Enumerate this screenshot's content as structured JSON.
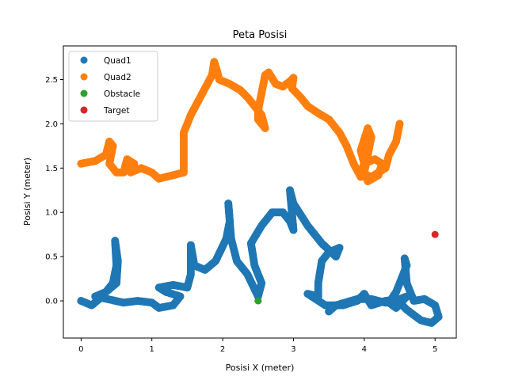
{
  "chart_data": {
    "type": "scatter",
    "title": "Peta Posisi",
    "xlabel": "Posisi X (meter)",
    "ylabel": "Posisi Y (meter)",
    "xlim": [
      -0.25,
      5.3
    ],
    "ylim": [
      -0.42,
      2.88
    ],
    "xticks": [
      0,
      1,
      2,
      3,
      4,
      5
    ],
    "yticks": [
      0.0,
      0.5,
      1.0,
      1.5,
      2.0,
      2.5
    ],
    "ytick_labels": [
      "0.0",
      "0.5",
      "1.0",
      "1.5",
      "2.0",
      "2.5"
    ],
    "grid": false,
    "legend_position": "top-left",
    "series": [
      {
        "name": "Quad1",
        "color": "#1f77b4",
        "style": "dense-path",
        "points": [
          [
            0,
            0
          ],
          [
            0.15,
            -0.05
          ],
          [
            0.3,
            0.05
          ],
          [
            0.45,
            0.2
          ],
          [
            0.5,
            0.4
          ],
          [
            0.48,
            0.68
          ],
          [
            0.52,
            0.45
          ],
          [
            0.5,
            0.2
          ],
          [
            0.35,
            0.1
          ],
          [
            0.2,
            0.05
          ],
          [
            0.6,
            -0.02
          ],
          [
            0.8,
            0.0
          ],
          [
            1.0,
            -0.02
          ],
          [
            1.1,
            -0.08
          ],
          [
            1.3,
            -0.05
          ],
          [
            1.4,
            0.05
          ],
          [
            1.2,
            0.1
          ],
          [
            1.1,
            0.15
          ],
          [
            1.3,
            0.18
          ],
          [
            1.5,
            0.15
          ],
          [
            1.55,
            0.3
          ],
          [
            1.55,
            0.63
          ],
          [
            1.6,
            0.4
          ],
          [
            1.75,
            0.35
          ],
          [
            1.9,
            0.45
          ],
          [
            2.05,
            0.7
          ],
          [
            2.1,
            0.9
          ],
          [
            2.08,
            1.1
          ],
          [
            2.12,
            0.7
          ],
          [
            2.2,
            0.45
          ],
          [
            2.35,
            0.3
          ],
          [
            2.5,
            0.05
          ],
          [
            2.55,
            0.2
          ],
          [
            2.45,
            0.4
          ],
          [
            2.4,
            0.65
          ],
          [
            2.55,
            0.85
          ],
          [
            2.7,
            1.0
          ],
          [
            2.85,
            1.0
          ],
          [
            2.95,
            0.9
          ],
          [
            3.0,
            0.8
          ],
          [
            2.95,
            1.25
          ],
          [
            3.0,
            1.1
          ],
          [
            3.2,
            0.85
          ],
          [
            3.4,
            0.65
          ],
          [
            3.6,
            0.5
          ],
          [
            3.65,
            0.6
          ],
          [
            3.5,
            0.55
          ],
          [
            3.4,
            0.45
          ],
          [
            3.35,
            0.2
          ],
          [
            3.35,
            0.05
          ],
          [
            3.2,
            0.08
          ],
          [
            3.45,
            -0.05
          ],
          [
            3.7,
            -0.05
          ],
          [
            3.9,
            0.0
          ],
          [
            4.0,
            0.08
          ],
          [
            4.1,
            -0.05
          ],
          [
            4.3,
            0.0
          ],
          [
            4.5,
            0.02
          ],
          [
            4.6,
            0.05
          ],
          [
            4.45,
            -0.08
          ],
          [
            4.35,
            -0.02
          ],
          [
            4.45,
            0.1
          ],
          [
            4.6,
            0.4
          ],
          [
            4.57,
            0.48
          ],
          [
            4.6,
            0.2
          ],
          [
            4.7,
            0.0
          ],
          [
            4.85,
            0.02
          ],
          [
            5.0,
            -0.05
          ],
          [
            5.05,
            -0.18
          ],
          [
            4.95,
            -0.25
          ],
          [
            4.8,
            -0.22
          ],
          [
            4.6,
            -0.1
          ],
          [
            4.5,
            -0.02
          ],
          [
            4.3,
            -0.02
          ],
          [
            4.1,
            0.02
          ],
          [
            3.9,
            0.02
          ],
          [
            3.6,
            -0.05
          ],
          [
            3.5,
            -0.12
          ]
        ]
      },
      {
        "name": "Quad2",
        "color": "#ff7f0e",
        "style": "dense-path",
        "points": [
          [
            0.0,
            1.55
          ],
          [
            0.2,
            1.58
          ],
          [
            0.35,
            1.65
          ],
          [
            0.4,
            1.8
          ],
          [
            0.45,
            1.75
          ],
          [
            0.4,
            1.55
          ],
          [
            0.5,
            1.45
          ],
          [
            0.6,
            1.45
          ],
          [
            0.65,
            1.6
          ],
          [
            0.75,
            1.55
          ],
          [
            0.7,
            1.45
          ],
          [
            0.85,
            1.5
          ],
          [
            1.0,
            1.45
          ],
          [
            1.1,
            1.38
          ],
          [
            1.3,
            1.42
          ],
          [
            1.45,
            1.45
          ],
          [
            1.45,
            1.6
          ],
          [
            1.45,
            1.9
          ],
          [
            1.55,
            2.1
          ],
          [
            1.65,
            2.25
          ],
          [
            1.75,
            2.4
          ],
          [
            1.85,
            2.55
          ],
          [
            1.88,
            2.7
          ],
          [
            1.92,
            2.6
          ],
          [
            1.95,
            2.5
          ],
          [
            2.1,
            2.45
          ],
          [
            2.25,
            2.38
          ],
          [
            2.35,
            2.3
          ],
          [
            2.45,
            2.2
          ],
          [
            2.55,
            2.1
          ],
          [
            2.6,
            1.95
          ],
          [
            2.5,
            2.05
          ],
          [
            2.5,
            2.15
          ],
          [
            2.55,
            2.35
          ],
          [
            2.6,
            2.55
          ],
          [
            2.65,
            2.58
          ],
          [
            2.75,
            2.45
          ],
          [
            2.85,
            2.42
          ],
          [
            2.95,
            2.48
          ],
          [
            3.0,
            2.52
          ],
          [
            2.98,
            2.4
          ],
          [
            3.1,
            2.3
          ],
          [
            3.2,
            2.2
          ],
          [
            3.35,
            2.12
          ],
          [
            3.5,
            2.05
          ],
          [
            3.65,
            1.9
          ],
          [
            3.75,
            1.75
          ],
          [
            3.85,
            1.55
          ],
          [
            3.95,
            1.4
          ],
          [
            4.0,
            1.55
          ],
          [
            3.95,
            1.7
          ],
          [
            4.05,
            1.95
          ],
          [
            4.1,
            1.85
          ],
          [
            4.05,
            1.65
          ],
          [
            4.0,
            1.45
          ],
          [
            4.05,
            1.35
          ],
          [
            4.2,
            1.42
          ],
          [
            4.25,
            1.55
          ],
          [
            4.15,
            1.6
          ],
          [
            4.0,
            1.55
          ],
          [
            3.95,
            1.45
          ],
          [
            4.1,
            1.4
          ],
          [
            4.3,
            1.5
          ],
          [
            4.35,
            1.65
          ],
          [
            4.45,
            1.8
          ],
          [
            4.5,
            2.0
          ]
        ]
      },
      {
        "name": "Obstacle",
        "color": "#2ca02c",
        "style": "points",
        "points": [
          [
            2.5,
            0.0
          ]
        ]
      },
      {
        "name": "Target",
        "color": "#d62728",
        "style": "points",
        "points": [
          [
            5.0,
            0.75
          ]
        ]
      }
    ]
  }
}
